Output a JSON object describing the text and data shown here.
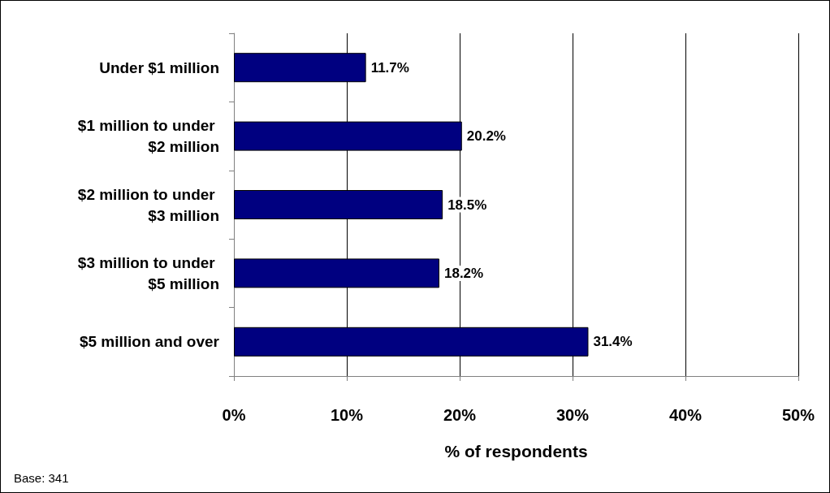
{
  "chart_data": {
    "type": "bar",
    "orientation": "horizontal",
    "categories": [
      "Under $1 million",
      "$1 million to under $2 million",
      "$2 million to under $3 million",
      "$3 million to under $5 million",
      "$5 million and over"
    ],
    "values": [
      11.7,
      20.2,
      18.5,
      18.2,
      31.4
    ],
    "value_labels": [
      "11.7%",
      "20.2%",
      "18.5%",
      "18.2%",
      "31.4%"
    ],
    "color": "#000080",
    "xlim": [
      0,
      50
    ],
    "xticks": [
      {
        "value": 0,
        "label": "0%"
      },
      {
        "value": 10,
        "label": "10%"
      },
      {
        "value": 20,
        "label": "20%"
      },
      {
        "value": 30,
        "label": "30%"
      },
      {
        "value": 40,
        "label": "40%"
      },
      {
        "value": 50,
        "label": "50%"
      }
    ],
    "xlabel": "% of respondents",
    "grid": "x",
    "annotations": [
      "Base: 341"
    ]
  }
}
